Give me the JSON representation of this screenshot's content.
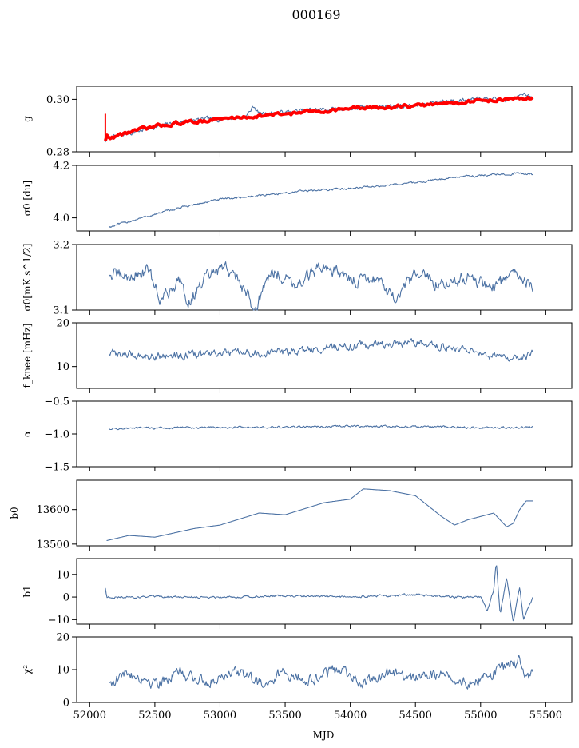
{
  "figure": {
    "title": "000169",
    "shared_xlabel": "MJD",
    "colors": {
      "series": "#4c72a4",
      "fit": "#ff0000",
      "axes": "#000000",
      "background": "#ffffff"
    }
  },
  "chart_data": [
    {
      "type": "line",
      "id": "g",
      "ylabel": "g",
      "ylim": [
        0.28,
        0.305
      ],
      "yticks": [
        0.28,
        0.3
      ],
      "yticklabels": [
        "0.28",
        "0.30"
      ],
      "xlim": [
        51900,
        55700
      ],
      "series": [
        {
          "x": [
            52120,
            52150,
            52300,
            52500,
            52700,
            52900,
            53000,
            53200,
            53260,
            53300,
            53500,
            53700,
            54000,
            54300,
            54500,
            54700,
            55000,
            55200,
            55320,
            55400
          ],
          "y": [
            0.284,
            0.2855,
            0.287,
            0.2895,
            0.2915,
            0.2925,
            0.2925,
            0.2935,
            0.2975,
            0.2945,
            0.295,
            0.296,
            0.2965,
            0.2975,
            0.2975,
            0.2995,
            0.3,
            0.2995,
            0.3025,
            0.3
          ]
        },
        {
          "x": [
            52120,
            52125,
            52140,
            52300,
            52600,
            53000,
            53500,
            54000,
            54500,
            55000,
            55400
          ],
          "y": [
            0.2845,
            0.2875,
            0.285,
            0.2875,
            0.2905,
            0.2925,
            0.2945,
            0.2965,
            0.2975,
            0.2995,
            0.3005
          ],
          "color": "red"
        }
      ]
    },
    {
      "type": "line",
      "id": "sigma0",
      "ylabel": "σ0 [du]",
      "ylim": [
        3.95,
        4.2
      ],
      "yticks": [
        4.0,
        4.2
      ],
      "yticklabels": [
        "4.0",
        "4.2"
      ],
      "xlim": [
        51900,
        55700
      ],
      "series": [
        {
          "x": [
            52150,
            52400,
            52700,
            53000,
            53300,
            53600,
            53900,
            54200,
            54500,
            54800,
            55100,
            55300,
            55400
          ],
          "y": [
            3.965,
            4.0,
            4.04,
            4.07,
            4.085,
            4.1,
            4.11,
            4.12,
            4.135,
            4.155,
            4.165,
            4.17,
            4.165
          ]
        }
      ]
    },
    {
      "type": "line",
      "id": "sigma0-white",
      "ylabel": "σ0[mK s^1/2]",
      "ylim": [
        3.1,
        3.2
      ],
      "yticks": [
        3.1,
        3.2
      ],
      "yticklabels": [
        "3.1",
        "3.2"
      ],
      "xlim": [
        51900,
        55700
      ],
      "series": [
        {
          "x": [
            52150,
            52300,
            52450,
            52550,
            52700,
            52750,
            52900,
            53050,
            53200,
            53260,
            53400,
            53600,
            53800,
            54000,
            54200,
            54350,
            54500,
            54700,
            54900,
            55100,
            55300,
            55400
          ],
          "y": [
            3.155,
            3.15,
            3.16,
            3.115,
            3.15,
            3.11,
            3.15,
            3.165,
            3.13,
            3.1,
            3.16,
            3.14,
            3.17,
            3.145,
            3.15,
            3.11,
            3.155,
            3.14,
            3.15,
            3.135,
            3.16,
            3.13
          ]
        }
      ]
    },
    {
      "type": "line",
      "id": "fknee",
      "ylabel": "f_knee [mHz]",
      "ylim": [
        5,
        20
      ],
      "yticks": [
        10,
        20
      ],
      "yticklabels": [
        "10",
        "20"
      ],
      "xlim": [
        51900,
        55700
      ],
      "series": [
        {
          "x": [
            52150,
            52400,
            52700,
            53000,
            53300,
            53600,
            53900,
            54200,
            54500,
            54800,
            55000,
            55200,
            55350,
            55400
          ],
          "y": [
            13,
            12.5,
            12.5,
            13,
            13,
            13.5,
            14.5,
            15,
            15.5,
            14.5,
            12.5,
            12,
            12.5,
            14
          ]
        }
      ]
    },
    {
      "type": "line",
      "id": "alpha",
      "ylabel": "α",
      "ylim": [
        -1.5,
        -0.5
      ],
      "yticks": [
        -1.5,
        -1.0,
        -0.5
      ],
      "yticklabels": [
        "−1.5",
        "−1.0",
        "−0.5"
      ],
      "xlim": [
        51900,
        55700
      ],
      "series": [
        {
          "x": [
            52150,
            52500,
            53000,
            53500,
            54000,
            54500,
            55000,
            55400
          ],
          "y": [
            -0.92,
            -0.91,
            -0.9,
            -0.9,
            -0.88,
            -0.89,
            -0.9,
            -0.9
          ]
        }
      ]
    },
    {
      "type": "line",
      "id": "b0",
      "ylabel": "b0",
      "ylim": [
        13495,
        13685
      ],
      "yticks": [
        13500,
        13600
      ],
      "yticklabels": [
        "13500",
        "13600"
      ],
      "xlim": [
        51900,
        55700
      ],
      "series": [
        {
          "x": [
            52130,
            52300,
            52500,
            52800,
            53000,
            53300,
            53500,
            53800,
            54000,
            54100,
            54300,
            54500,
            54700,
            54800,
            54900,
            55100,
            55200,
            55250,
            55300,
            55350,
            55400
          ],
          "y": [
            13510,
            13525,
            13520,
            13545,
            13555,
            13590,
            13585,
            13620,
            13630,
            13660,
            13655,
            13640,
            13580,
            13555,
            13570,
            13590,
            13550,
            13560,
            13600,
            13625,
            13625
          ]
        }
      ]
    },
    {
      "type": "line",
      "id": "b1",
      "ylabel": "b1",
      "ylim": [
        -12,
        17
      ],
      "yticks": [
        -10,
        0,
        10
      ],
      "yticklabels": [
        "−10",
        "0",
        "10"
      ],
      "xlim": [
        51900,
        55700
      ],
      "series": [
        {
          "x": [
            52120,
            52130,
            52500,
            53000,
            53500,
            54000,
            54500,
            54800,
            55000,
            55050,
            55100,
            55120,
            55150,
            55200,
            55250,
            55300,
            55330,
            55400
          ],
          "y": [
            4,
            0,
            0,
            0,
            0.5,
            0,
            1,
            0,
            0,
            -6,
            3,
            16,
            -8,
            9,
            -11,
            4,
            -10,
            0
          ]
        }
      ]
    },
    {
      "type": "line",
      "id": "chi2",
      "ylabel": "χ²",
      "ylim": [
        0,
        20
      ],
      "yticks": [
        0,
        10,
        20
      ],
      "yticklabels": [
        "0",
        "10",
        "20"
      ],
      "xlim": [
        51900,
        55700
      ],
      "xticks": [
        52000,
        52500,
        53000,
        53500,
        54000,
        54500,
        55000,
        55500
      ],
      "xticklabels": [
        "52000",
        "52500",
        "53000",
        "53500",
        "54000",
        "54500",
        "55000",
        "55500"
      ],
      "series": [
        {
          "x": [
            52150,
            52300,
            52500,
            52700,
            52900,
            53100,
            53300,
            53500,
            53700,
            53900,
            54100,
            54300,
            54500,
            54700,
            54900,
            55100,
            55300,
            55350,
            55400
          ],
          "y": [
            6,
            9,
            6,
            9,
            6,
            10,
            6,
            9,
            7,
            10,
            6,
            9,
            7,
            9,
            6,
            9,
            13,
            8,
            9
          ]
        }
      ]
    }
  ]
}
